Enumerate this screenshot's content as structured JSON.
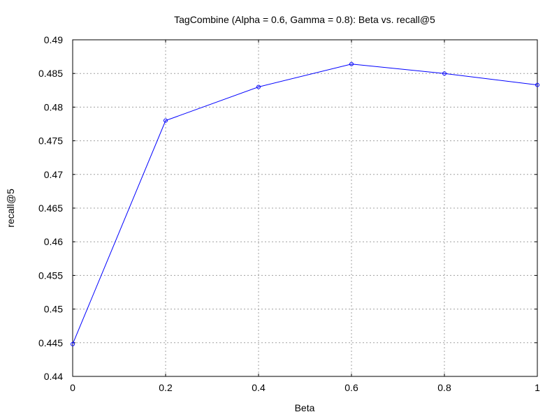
{
  "chart_data": {
    "type": "line",
    "title": "TagCombine (Alpha = 0.6, Gamma = 0.8): Beta vs. recall@5",
    "xlabel": "Beta",
    "ylabel": "recall@5",
    "xlim": [
      0,
      1
    ],
    "ylim": [
      0.44,
      0.49
    ],
    "xticks": [
      0,
      0.2,
      0.4,
      0.6,
      0.8,
      1
    ],
    "xtick_labels": [
      "0",
      "0.2",
      "0.4",
      "0.6",
      "0.8",
      "1"
    ],
    "yticks": [
      0.44,
      0.445,
      0.45,
      0.455,
      0.46,
      0.465,
      0.47,
      0.475,
      0.48,
      0.485,
      0.49
    ],
    "ytick_labels": [
      "0.44",
      "0.445",
      "0.45",
      "0.455",
      "0.46",
      "0.465",
      "0.47",
      "0.475",
      "0.48",
      "0.485",
      "0.49"
    ],
    "grid": true,
    "legend": "none",
    "series": [
      {
        "color": "#0000ff",
        "marker": "circle",
        "x": [
          0,
          0.2,
          0.4,
          0.6,
          0.8,
          1
        ],
        "y": [
          0.4448,
          0.478,
          0.483,
          0.4864,
          0.485,
          0.4833
        ]
      }
    ]
  }
}
